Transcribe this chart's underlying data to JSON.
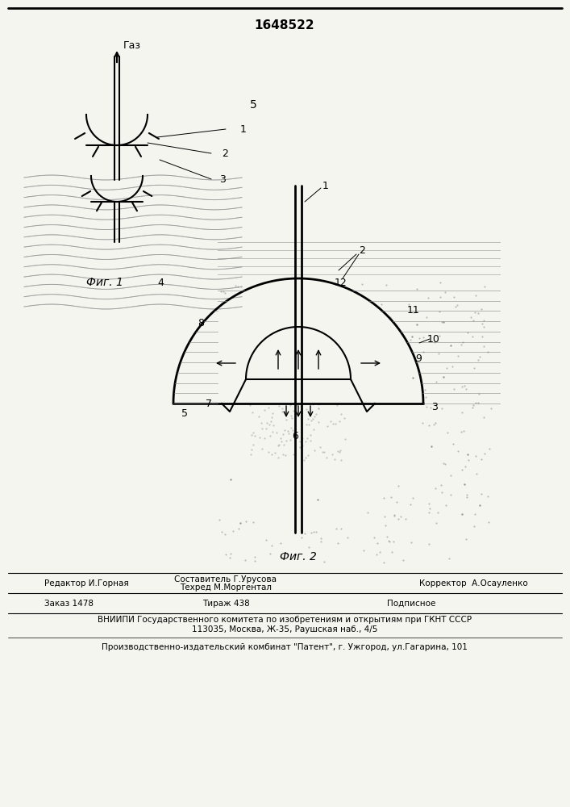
{
  "patent_number": "1648522",
  "background_color": "#f5f5f0",
  "fig1_caption": "Фиг. 1",
  "fig2_caption": "Фиг. 2",
  "gas_label": "Газ",
  "fig1_number": "5",
  "footer_line1_col1": "Редактор И.Горная",
  "footer_line1_col2": "Составитель Г.Урусова\nТехред М.Моргентал",
  "footer_line1_col3": "Корректор  А.Осауленко",
  "footer_line2_col1": "Заказ 1478",
  "footer_line2_col2": "Тираж 438",
  "footer_line2_col3": "Подписное",
  "footer_line3": "ВНИИПИ Государственного комитета по изобретениям и открытиям при ГКНТ СССР",
  "footer_line4": "113035, Москва, Ж-35, Раушская наб., 4/5",
  "footer_line5": "Производственно-издательский комбинат \"Патент\", г. Ужгород, ул.Гагарина, 101"
}
